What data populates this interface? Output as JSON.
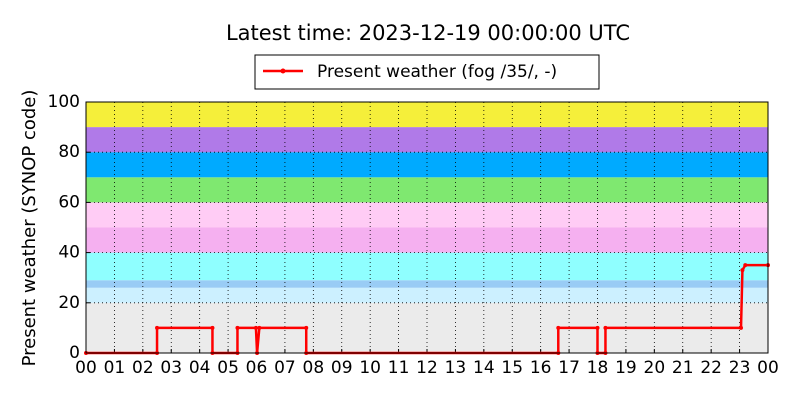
{
  "chart_data": {
    "type": "line",
    "title": "Latest time: 2023-12-19 00:00:00 UTC",
    "y_label": "Present weather (SYNOP code)",
    "xlim": [
      0,
      24
    ],
    "ylim": [
      0,
      100
    ],
    "xticks": [
      {
        "value": 0,
        "label": "00"
      },
      {
        "value": 1,
        "label": "01"
      },
      {
        "value": 2,
        "label": "02"
      },
      {
        "value": 3,
        "label": "03"
      },
      {
        "value": 4,
        "label": "04"
      },
      {
        "value": 5,
        "label": "05"
      },
      {
        "value": 6,
        "label": "06"
      },
      {
        "value": 7,
        "label": "07"
      },
      {
        "value": 8,
        "label": "08"
      },
      {
        "value": 9,
        "label": "09"
      },
      {
        "value": 10,
        "label": "10"
      },
      {
        "value": 11,
        "label": "11"
      },
      {
        "value": 12,
        "label": "12"
      },
      {
        "value": 13,
        "label": "13"
      },
      {
        "value": 14,
        "label": "14"
      },
      {
        "value": 15,
        "label": "15"
      },
      {
        "value": 16,
        "label": "16"
      },
      {
        "value": 17,
        "label": "17"
      },
      {
        "value": 18,
        "label": "18"
      },
      {
        "value": 19,
        "label": "19"
      },
      {
        "value": 20,
        "label": "20"
      },
      {
        "value": 21,
        "label": "21"
      },
      {
        "value": 22,
        "label": "22"
      },
      {
        "value": 23,
        "label": "23"
      },
      {
        "value": 24,
        "label": "00"
      }
    ],
    "yticks": [
      0,
      20,
      40,
      60,
      80,
      100
    ],
    "grid": true,
    "legend": "upper center",
    "bands": [
      {
        "from": 0,
        "to": 20,
        "color": "#ebebeb"
      },
      {
        "from": 20,
        "to": 26,
        "color": "#ccf0ff"
      },
      {
        "from": 26,
        "to": 29,
        "color": "#99ccf5"
      },
      {
        "from": 29,
        "to": 40,
        "color": "#8fffff"
      },
      {
        "from": 40,
        "to": 50,
        "color": "#f5b0f0"
      },
      {
        "from": 50,
        "to": 60,
        "color": "#ffccf5"
      },
      {
        "from": 60,
        "to": 70,
        "color": "#7fe870"
      },
      {
        "from": 70,
        "to": 80,
        "color": "#00aaff"
      },
      {
        "from": 80,
        "to": 90,
        "color": "#b07ae8"
      },
      {
        "from": 90,
        "to": 100,
        "color": "#f5ef3a"
      }
    ],
    "x": [
      0,
      2.5,
      2.5,
      4.45,
      4.45,
      5.33,
      5.33,
      5.98,
      6.02,
      6.1,
      7.75,
      7.75,
      16.62,
      16.62,
      18.0,
      18.0,
      18.28,
      18.28,
      23.05,
      23.1,
      23.2,
      24
    ],
    "series": [
      {
        "name": "Present weather (fog /35/, -)",
        "color": "#ff0000",
        "values": [
          0,
          0,
          10,
          10,
          0,
          0,
          10,
          10,
          0,
          10,
          10,
          0,
          0,
          10,
          10,
          0,
          0,
          10,
          10,
          33,
          35,
          35
        ]
      }
    ]
  }
}
